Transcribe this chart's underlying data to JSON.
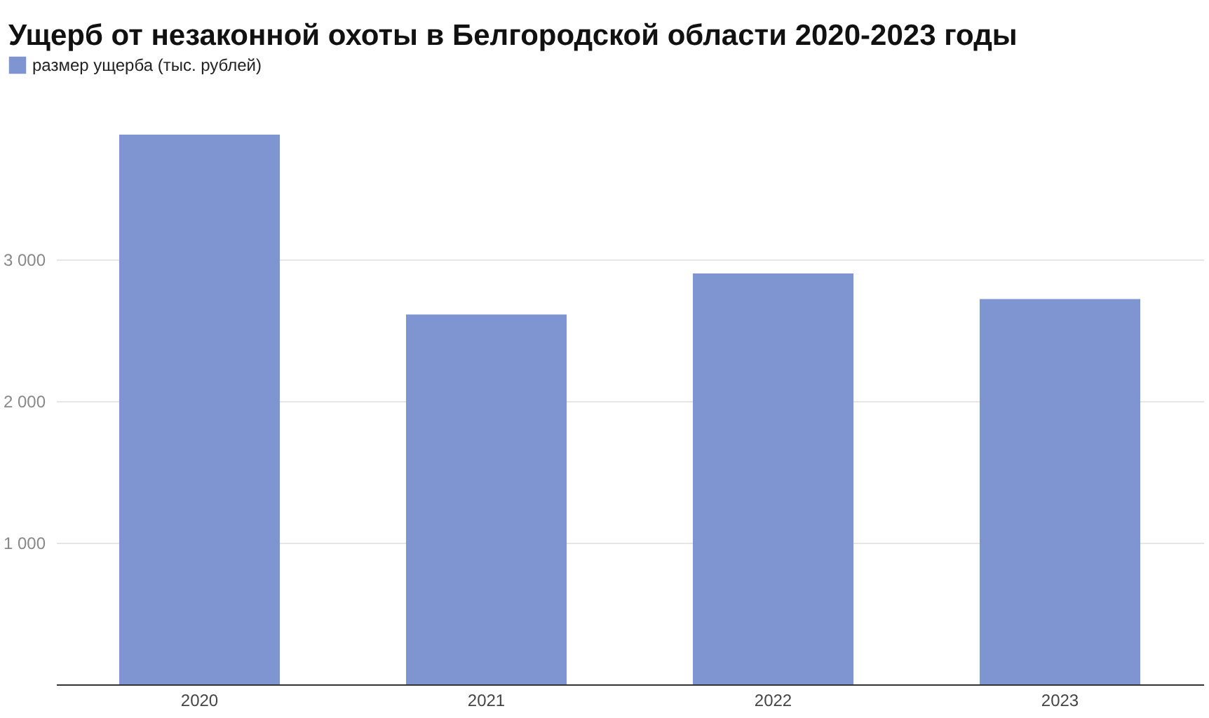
{
  "chart_data": {
    "type": "bar",
    "title": "Ущерб от незаконной охоты в Белгородской области 2020-2023 годы",
    "categories": [
      "2020",
      "2021",
      "2022",
      "2023"
    ],
    "series": [
      {
        "name": "размер ущерба (тыс. рублей)",
        "color": "#7f95d1",
        "values": [
          3880,
          2610,
          2900,
          2720
        ]
      }
    ],
    "yticks": [
      {
        "value": 1000,
        "label": "1 000"
      },
      {
        "value": 2000,
        "label": "2 000"
      },
      {
        "value": 3000,
        "label": "3 000"
      }
    ],
    "ylim": [
      0,
      3880
    ],
    "grid": "y",
    "legend": "top left"
  }
}
